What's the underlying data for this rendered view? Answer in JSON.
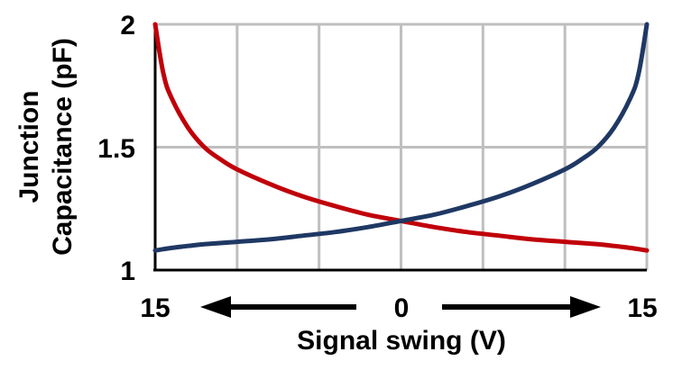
{
  "chart_data": {
    "type": "line",
    "xlabel": "Signal swing (V)",
    "ylabel_lines": [
      "Junction",
      "Capacitance (pF)"
    ],
    "x_tick_labels": [
      "15",
      "0",
      "15"
    ],
    "y_tick_labels": [
      "2",
      "1.5",
      "1"
    ],
    "ylim": [
      1,
      2
    ],
    "xlim": [
      -15,
      15
    ],
    "grid": true,
    "series": [
      {
        "color": "#c0000a",
        "x": [
          -15,
          -14.5,
          -14,
          -13,
          -12,
          -11,
          -10,
          -8,
          -6,
          -4,
          -2,
          0,
          2,
          4,
          6,
          8,
          10,
          12,
          13,
          14,
          15
        ],
        "values": [
          2.0,
          1.8,
          1.7,
          1.58,
          1.5,
          1.45,
          1.41,
          1.35,
          1.3,
          1.26,
          1.225,
          1.2,
          1.175,
          1.155,
          1.14,
          1.125,
          1.115,
          1.105,
          1.098,
          1.09,
          1.08
        ]
      },
      {
        "color": "#1f3864",
        "x": [
          -15,
          -14,
          -13,
          -12,
          -10,
          -8,
          -6,
          -4,
          -2,
          0,
          2,
          4,
          6,
          8,
          10,
          11,
          12,
          13,
          14,
          14.5,
          15
        ],
        "values": [
          1.08,
          1.09,
          1.098,
          1.105,
          1.115,
          1.125,
          1.14,
          1.155,
          1.175,
          1.2,
          1.225,
          1.26,
          1.3,
          1.35,
          1.41,
          1.45,
          1.5,
          1.58,
          1.7,
          1.8,
          2.0
        ]
      }
    ]
  },
  "colors": {
    "grid": "#bfbfbf",
    "axis": "#000000",
    "arrow": "#000000"
  }
}
